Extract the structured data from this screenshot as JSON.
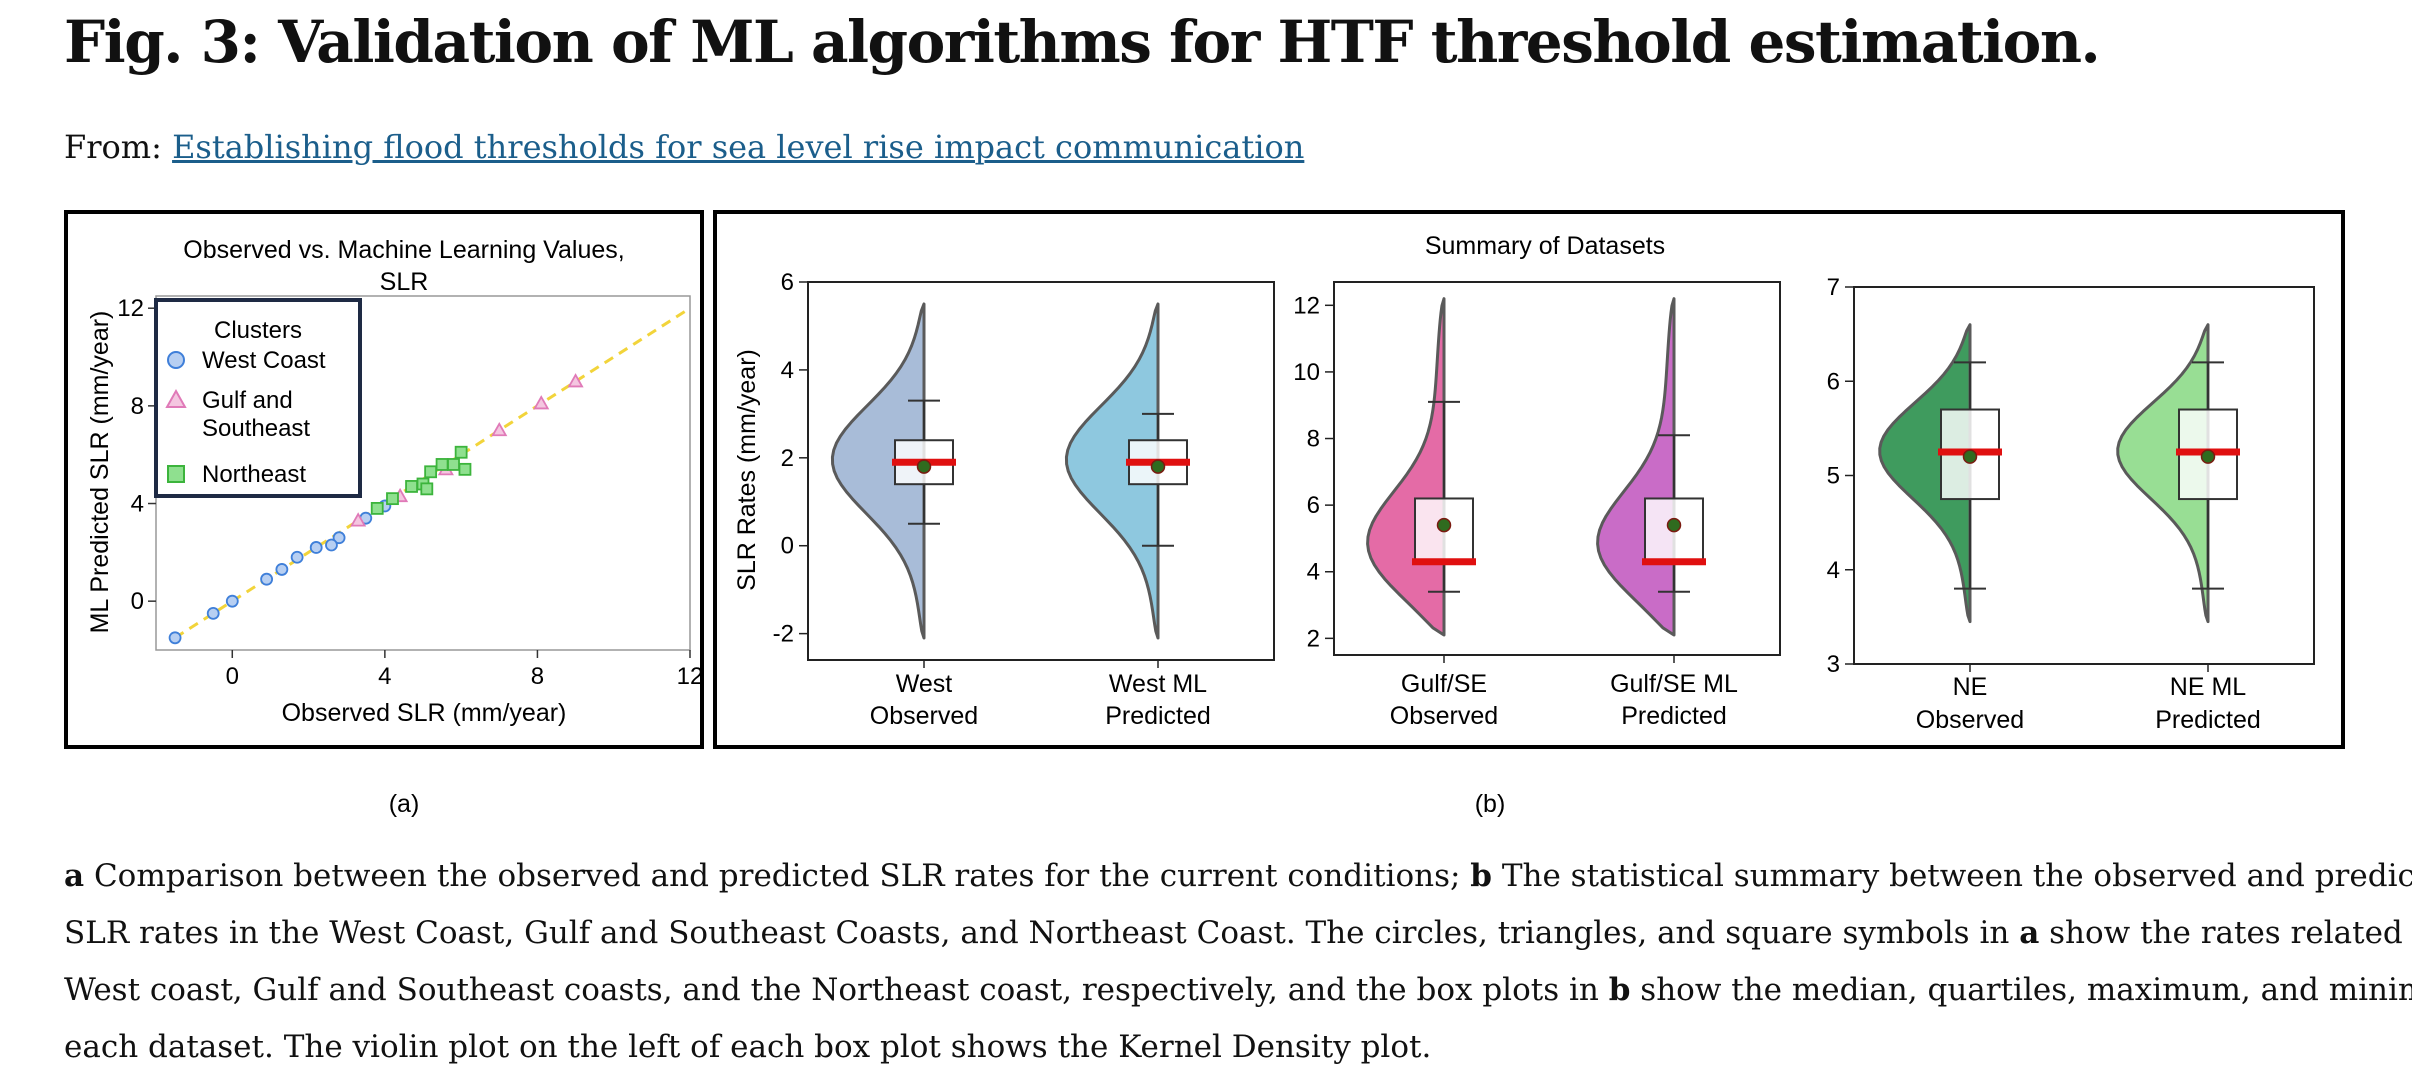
{
  "page": {
    "title": "Fig. 3: Validation of ML algorithms for HTF threshold estimation.",
    "from_label": "From:",
    "from_link": "Establishing flood thresholds for sea level rise impact communication"
  },
  "caption": {
    "line1_a": "a",
    "line1_t1": "Comparison between the observed and predicted SLR rates for the current conditions;",
    "line1_b": "b",
    "line1_t2": "The statistical summary between the observed and predicted",
    "line2_t1": "SLR rates in the West Coast, Gulf and Southeast Coasts, and Northeast Coast. The circles, triangles, and square symbols in",
    "line2_a": "a",
    "line2_t2": "show the rates related to the",
    "line3_t1": "West coast, Gulf and Southeast coasts, and the Northeast coast, respectively, and the box plots in",
    "line3_b": "b",
    "line3_t2": "show the median, quartiles, maximum, and minimum of",
    "line4": "each dataset. The violin plot on the left of each box plot shows the Kernel Density plot."
  },
  "chart_data": [
    {
      "type": "scatter",
      "panel_label": "(a)",
      "title": "Observed vs. Machine Learning Values, SLR",
      "title_line1": "Observed vs. Machine Learning Values,",
      "title_line2": "SLR",
      "xlabel": "Observed SLR (mm/year)",
      "ylabel": "ML Predicted SLR (mm/year)",
      "xlim": [
        -2,
        12
      ],
      "ylim": [
        -2,
        12.5
      ],
      "xticks": [
        0,
        4,
        8,
        12
      ],
      "yticks": [
        0,
        4,
        8,
        12
      ],
      "legend_title": "Clusters",
      "legend_placement": "top-left",
      "reference_line": "y = x (dashed)",
      "reference_color": "#f2d43a",
      "series": [
        {
          "name": "West Coast",
          "label_lines": [
            "West Coast"
          ],
          "marker": "circle",
          "color": "#3f7fd9",
          "fill": "#b7cff2",
          "points": [
            [
              -1.5,
              -1.5
            ],
            [
              -0.5,
              -0.5
            ],
            [
              0,
              0
            ],
            [
              0.9,
              0.9
            ],
            [
              1.3,
              1.3
            ],
            [
              1.7,
              1.8
            ],
            [
              2.2,
              2.2
            ],
            [
              2.8,
              2.6
            ],
            [
              2.6,
              2.3
            ],
            [
              3.5,
              3.4
            ],
            [
              4.0,
              3.9
            ]
          ]
        },
        {
          "name": "Gulf and Southeast",
          "label_lines": [
            "Gulf and",
            "Southeast"
          ],
          "marker": "triangle",
          "color": "#e07ab8",
          "fill": "#f4c6e0",
          "points": [
            [
              3.3,
              3.3
            ],
            [
              4.4,
              4.3
            ],
            [
              5.6,
              5.4
            ],
            [
              7.0,
              7.0
            ],
            [
              8.1,
              8.1
            ],
            [
              9.0,
              9.0
            ]
          ]
        },
        {
          "name": "Northeast",
          "label_lines": [
            "Northeast"
          ],
          "marker": "square",
          "color": "#3cb43c",
          "fill": "#8fe08f",
          "points": [
            [
              3.8,
              3.8
            ],
            [
              4.2,
              4.2
            ],
            [
              4.7,
              4.7
            ],
            [
              5.0,
              4.8
            ],
            [
              5.2,
              5.3
            ],
            [
              5.5,
              5.6
            ],
            [
              5.8,
              5.6
            ],
            [
              6.0,
              6.1
            ],
            [
              6.1,
              5.4
            ],
            [
              5.1,
              4.6
            ]
          ]
        }
      ]
    },
    {
      "type": "violin_box",
      "panel_label": "(b)",
      "title": "Summary of Datasets",
      "ylabel": "SLR Rates (mm/year)",
      "subplots": [
        {
          "ylim": [
            -2.6,
            6
          ],
          "yticks": [
            -2,
            0,
            2,
            4,
            6
          ],
          "ytick_labels": [
            "-2",
            "0",
            "2",
            "4",
            "6"
          ],
          "groups": [
            {
              "label_lines": [
                "West",
                "Observed"
              ],
              "color": "#a8bcd8",
              "min": 0.5,
              "q1": 1.4,
              "median": 1.9,
              "mean": 1.8,
              "q3": 2.4,
              "max": 3.3,
              "range": [
                -2.1,
                5.5
              ],
              "density_peak": 2.0
            },
            {
              "label_lines": [
                "West ML",
                "Predicted"
              ],
              "color": "#8ec8df",
              "min": 0.0,
              "q1": 1.4,
              "median": 1.9,
              "mean": 1.8,
              "q3": 2.4,
              "max": 3.0,
              "range": [
                -2.1,
                5.5
              ],
              "density_peak": 2.0
            }
          ]
        },
        {
          "ylim": [
            1.5,
            12.7
          ],
          "yticks": [
            2,
            4,
            6,
            8,
            10,
            12
          ],
          "ytick_labels": [
            "2",
            "4",
            "6",
            "8",
            "10",
            "12"
          ],
          "groups": [
            {
              "label_lines": [
                "Gulf/SE",
                "Observed"
              ],
              "color": "#e46ba6",
              "min": 3.4,
              "q1": 4.3,
              "median": 4.3,
              "mean": 5.4,
              "q3": 6.2,
              "max": 9.1,
              "range": [
                2.1,
                12.2
              ],
              "density_peak": 4.4
            },
            {
              "label_lines": [
                "Gulf/SE ML",
                "Predicted"
              ],
              "color": "#c96cc7",
              "min": 3.4,
              "q1": 4.3,
              "median": 4.3,
              "mean": 5.4,
              "q3": 6.2,
              "max": 8.1,
              "range": [
                2.1,
                12.2
              ],
              "density_peak": 4.4
            }
          ]
        },
        {
          "ylim": [
            3,
            7
          ],
          "yticks": [
            3,
            4,
            5,
            6,
            7
          ],
          "ytick_labels": [
            "3",
            "4",
            "5",
            "6",
            "7"
          ],
          "groups": [
            {
              "label_lines": [
                "NE",
                "Observed"
              ],
              "color": "#3f9b5e",
              "min": 3.8,
              "q1": 4.75,
              "median": 5.25,
              "mean": 5.2,
              "q3": 5.7,
              "max": 6.2,
              "range": [
                3.45,
                6.6
              ],
              "density_peak": 5.3
            },
            {
              "label_lines": [
                "NE ML",
                "Predicted"
              ],
              "color": "#98de94",
              "min": 3.8,
              "q1": 4.75,
              "median": 5.25,
              "mean": 5.2,
              "q3": 5.7,
              "max": 6.2,
              "range": [
                3.45,
                6.6
              ],
              "density_peak": 5.3
            }
          ]
        }
      ],
      "median_color": "#e01010",
      "mean_color": "#2f6b1f"
    }
  ]
}
